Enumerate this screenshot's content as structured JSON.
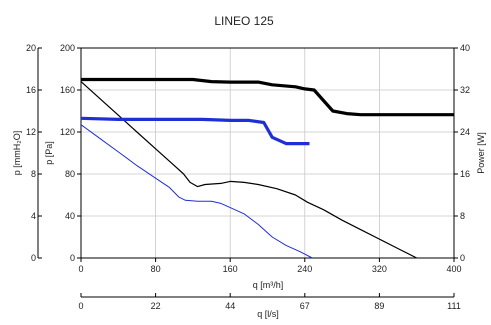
{
  "chart_data": {
    "type": "line",
    "title": "LINEO 125",
    "xlabel": "q [m³/h]",
    "x2label": "q [l/s]",
    "ylabel_left_outer": "p [mmH₂O]",
    "ylabel_left": "p [Pa]",
    "ylabel_right": "Power [W]",
    "xlim": [
      0,
      400
    ],
    "ylim": [
      0,
      200
    ],
    "y_outer_lim": [
      0,
      20
    ],
    "y_right_lim": [
      0,
      40
    ],
    "x_ticks": [
      0,
      80,
      160,
      240,
      320,
      400
    ],
    "x2_ticks": [
      "0",
      "22",
      "44",
      "67",
      "89",
      "111"
    ],
    "y_ticks": [
      0,
      40,
      80,
      120,
      160,
      200
    ],
    "y_outer_ticks": [
      0,
      4,
      8,
      12,
      16,
      20
    ],
    "y_right_ticks": [
      0,
      8,
      16,
      24,
      32,
      40
    ],
    "grid": true,
    "colors": {
      "black": "#000000",
      "blue": "#1f2fd6",
      "grid": "#c8c8c8"
    },
    "series": [
      {
        "color": "#000000",
        "width": 1.2,
        "axis": "pressure",
        "points": [
          [
            0,
            168
          ],
          [
            20,
            152
          ],
          [
            40,
            136
          ],
          [
            60,
            120
          ],
          [
            80,
            104
          ],
          [
            100,
            88
          ],
          [
            110,
            80
          ],
          [
            117,
            72
          ],
          [
            125,
            68
          ],
          [
            133,
            70
          ],
          [
            150,
            71
          ],
          [
            160,
            73
          ],
          [
            175,
            72
          ],
          [
            190,
            70
          ],
          [
            210,
            66
          ],
          [
            230,
            60
          ],
          [
            243,
            53
          ],
          [
            260,
            46
          ],
          [
            280,
            36
          ],
          [
            300,
            27
          ],
          [
            320,
            18
          ],
          [
            340,
            9
          ],
          [
            360,
            0
          ]
        ]
      },
      {
        "color": "#1f2fd6",
        "width": 1.0,
        "axis": "pressure",
        "points": [
          [
            0,
            127
          ],
          [
            20,
            114
          ],
          [
            40,
            101
          ],
          [
            60,
            88
          ],
          [
            80,
            76
          ],
          [
            95,
            67
          ],
          [
            105,
            58
          ],
          [
            112,
            55
          ],
          [
            125,
            54
          ],
          [
            140,
            54
          ],
          [
            150,
            52
          ],
          [
            160,
            48
          ],
          [
            175,
            42
          ],
          [
            190,
            32
          ],
          [
            205,
            20
          ],
          [
            220,
            12
          ],
          [
            235,
            6
          ],
          [
            248,
            0
          ]
        ]
      },
      {
        "color": "#000000",
        "width": 3.2,
        "axis": "power",
        "points": [
          [
            0,
            34
          ],
          [
            50,
            34
          ],
          [
            100,
            34
          ],
          [
            120,
            34
          ],
          [
            140,
            33.6
          ],
          [
            160,
            33.5
          ],
          [
            190,
            33.5
          ],
          [
            205,
            33.0
          ],
          [
            230,
            32.6
          ],
          [
            240,
            32.2
          ],
          [
            250,
            32.0
          ],
          [
            270,
            28.0
          ],
          [
            285,
            27.5
          ],
          [
            300,
            27.3
          ],
          [
            320,
            27.3
          ],
          [
            360,
            27.3
          ],
          [
            400,
            27.3
          ]
        ]
      },
      {
        "color": "#1f2fd6",
        "width": 3.2,
        "axis": "power",
        "points": [
          [
            0,
            26.6
          ],
          [
            40,
            26.4
          ],
          [
            80,
            26.4
          ],
          [
            130,
            26.4
          ],
          [
            160,
            26.2
          ],
          [
            180,
            26.2
          ],
          [
            196,
            25.8
          ],
          [
            205,
            23.0
          ],
          [
            220,
            21.8
          ],
          [
            245,
            21.8
          ]
        ]
      }
    ]
  }
}
